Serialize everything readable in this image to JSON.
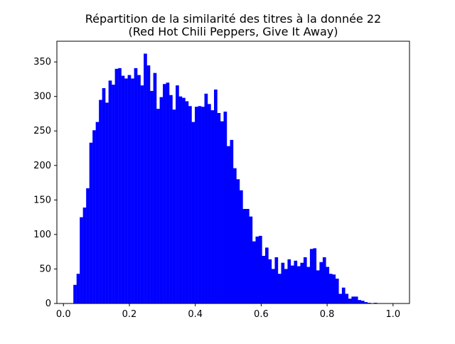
{
  "chart_data": {
    "type": "bar",
    "title": "Répartition de la similarité des titres à la donnée 22",
    "subtitle": "(Red Hot Chili Peppers, Give It Away)",
    "xlabel": "",
    "ylabel": "",
    "xlim": [
      -0.02,
      1.05
    ],
    "ylim": [
      0,
      380
    ],
    "xticks": [
      0.0,
      0.2,
      0.4,
      0.6,
      0.8,
      1.0
    ],
    "xtick_labels": [
      "0.0",
      "0.2",
      "0.4",
      "0.6",
      "0.8",
      "1.0"
    ],
    "yticks": [
      0,
      50,
      100,
      150,
      200,
      250,
      300,
      350
    ],
    "ytick_labels": [
      "0",
      "50",
      "100",
      "150",
      "200",
      "250",
      "300",
      "350"
    ],
    "grid": false,
    "legend": false,
    "bar_color": "#0000ff",
    "bin_start": 0.03,
    "bin_width": 0.0097,
    "values": [
      27,
      43,
      125,
      139,
      167,
      233,
      251,
      263,
      295,
      312,
      291,
      323,
      317,
      340,
      341,
      330,
      326,
      331,
      326,
      341,
      331,
      316,
      362,
      345,
      308,
      334,
      282,
      299,
      318,
      320,
      302,
      281,
      316,
      300,
      298,
      293,
      286,
      263,
      285,
      286,
      285,
      304,
      289,
      280,
      310,
      276,
      264,
      278,
      228,
      237,
      196,
      180,
      164,
      137,
      137,
      126,
      90,
      97,
      98,
      69,
      81,
      64,
      50,
      67,
      43,
      59,
      50,
      64,
      55,
      62,
      54,
      59,
      67,
      53,
      79,
      80,
      48,
      60,
      67,
      53,
      43,
      42,
      36,
      14,
      23,
      14,
      7,
      10,
      10,
      5,
      4,
      2,
      1,
      0,
      1
    ]
  }
}
